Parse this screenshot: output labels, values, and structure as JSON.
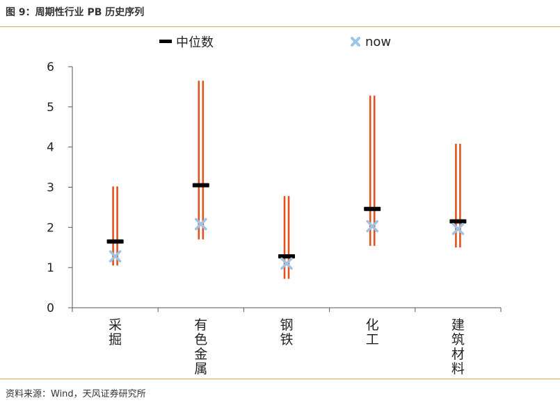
{
  "figure_title": "图 9：周期性行业 PB 历史序列",
  "source": "资料来源：Wind，天风证券研究所",
  "colors": {
    "range_bar": "#E0531F",
    "median": "#000000",
    "now": "#9DC3E6",
    "rule": "#E8A25C",
    "axis": "#555555"
  },
  "chart_data": {
    "type": "range",
    "categories": [
      "采掘",
      "有色金属",
      "钢铁",
      "化工",
      "建筑材料"
    ],
    "ylim": [
      0,
      6
    ],
    "yticks": [
      0,
      1,
      2,
      3,
      4,
      5,
      6
    ],
    "ytick_labels": [
      "0",
      "1",
      "2",
      "3",
      "4",
      "5",
      "6"
    ],
    "legend": {
      "position": "top",
      "median": "中位数",
      "now": "now"
    },
    "series": {
      "max": [
        3.02,
        5.65,
        2.78,
        5.28,
        4.08
      ],
      "min": [
        1.05,
        1.7,
        0.72,
        1.54,
        1.5
      ],
      "median": [
        1.65,
        3.05,
        1.28,
        2.46,
        2.15
      ],
      "now": [
        1.28,
        2.08,
        1.1,
        2.03,
        1.96
      ]
    }
  }
}
